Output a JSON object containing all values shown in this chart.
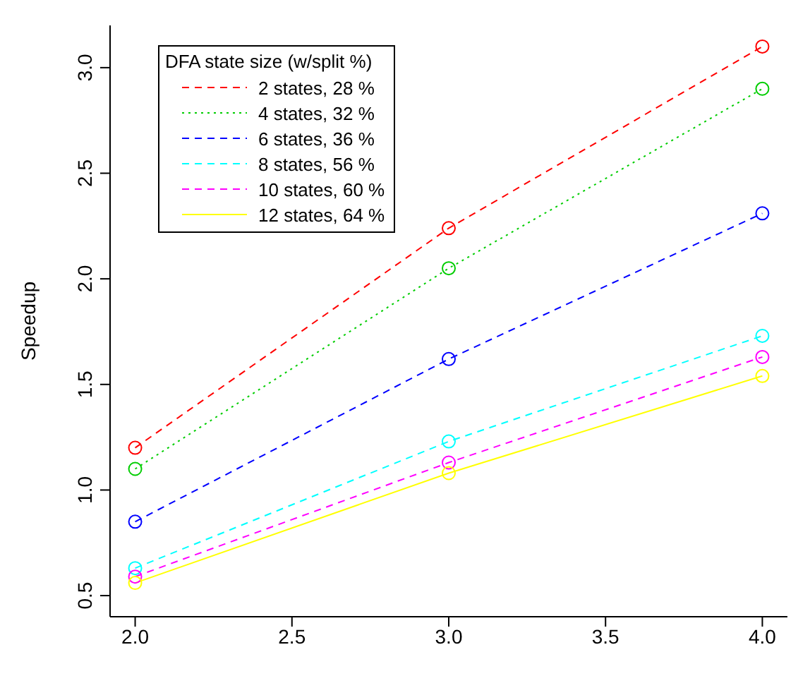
{
  "chart_data": {
    "type": "line",
    "ylabel": "Speedup",
    "legend_title": "DFA state size (w/split %)",
    "legend": "top left",
    "marker": "circle",
    "x": [
      2,
      3,
      4
    ],
    "xlim": [
      1.92,
      4.08
    ],
    "xticks": [
      {
        "value": 2,
        "label": "2.0"
      },
      {
        "value": 2.5,
        "label": "2.5"
      },
      {
        "value": 3,
        "label": "3.0"
      },
      {
        "value": 3.5,
        "label": "3.5"
      },
      {
        "value": 4,
        "label": "4.0"
      }
    ],
    "ylim": [
      0.4,
      3.2
    ],
    "yticks": [
      {
        "value": 0.5,
        "label": "0.5"
      },
      {
        "value": 1,
        "label": "1.0"
      },
      {
        "value": 1.5,
        "label": "1.5"
      },
      {
        "value": 2,
        "label": "2.0"
      },
      {
        "value": 2.5,
        "label": "2.5"
      },
      {
        "value": 3,
        "label": "3.0"
      }
    ],
    "series": [
      {
        "name": "2 states, 28 %",
        "color": "#ff0000",
        "line_style": "dashed",
        "values": [
          1.2,
          2.24,
          3.1
        ]
      },
      {
        "name": "4 states, 32 %",
        "color": "#00cd00",
        "line_style": "dotted",
        "values": [
          1.1,
          2.05,
          2.9
        ]
      },
      {
        "name": "6 states, 36 %",
        "color": "#0000ff",
        "line_style": "dashed",
        "values": [
          0.85,
          1.62,
          2.31
        ]
      },
      {
        "name": "8 states, 56 %",
        "color": "#00ffff",
        "line_style": "dashed",
        "values": [
          0.63,
          1.23,
          1.73
        ]
      },
      {
        "name": "10 states, 60 %",
        "color": "#ff00ff",
        "line_style": "dashed",
        "values": [
          0.59,
          1.13,
          1.63
        ]
      },
      {
        "name": "12 states, 64 %",
        "color": "#ffff00",
        "line_style": "solid",
        "values": [
          0.56,
          1.08,
          1.54
        ]
      }
    ]
  }
}
